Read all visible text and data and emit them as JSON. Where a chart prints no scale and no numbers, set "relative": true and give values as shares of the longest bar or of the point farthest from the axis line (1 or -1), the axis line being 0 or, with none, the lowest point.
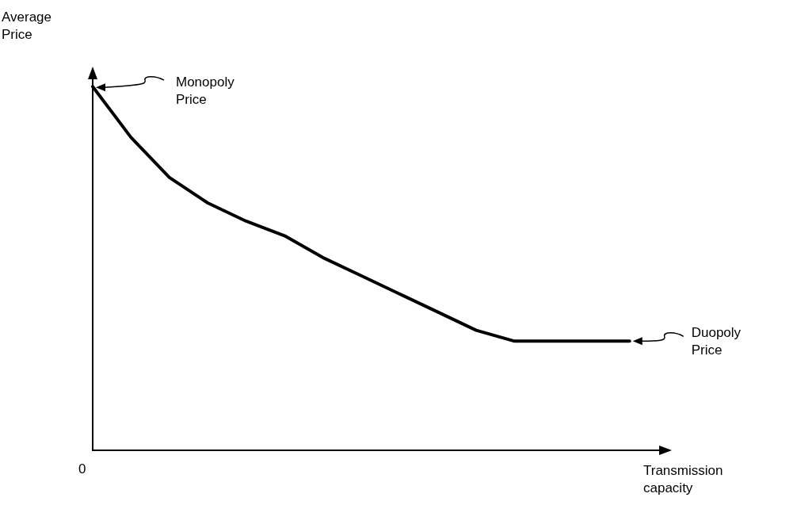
{
  "chart_data": {
    "type": "line",
    "relative": true,
    "xlabel": "Transmission capacity",
    "ylabel": "Average Price",
    "categories": [
      null,
      null,
      null,
      null,
      null,
      null,
      null,
      null,
      null,
      null,
      null,
      null,
      null,
      null,
      null
    ],
    "series": [
      {
        "color": "#000000",
        "values": [
          1,
          0.86,
          0.75,
          0.68,
          0.63,
          0.59,
          0.53,
          0.48,
          0.43,
          0.38,
          0.33,
          0.3,
          0.3,
          0.3,
          0.3
        ]
      }
    ],
    "marker": "none",
    "line_style": "solid",
    "grid": false,
    "annotations": [
      "Monopoly Price",
      "Duopoly Price",
      "0"
    ]
  }
}
